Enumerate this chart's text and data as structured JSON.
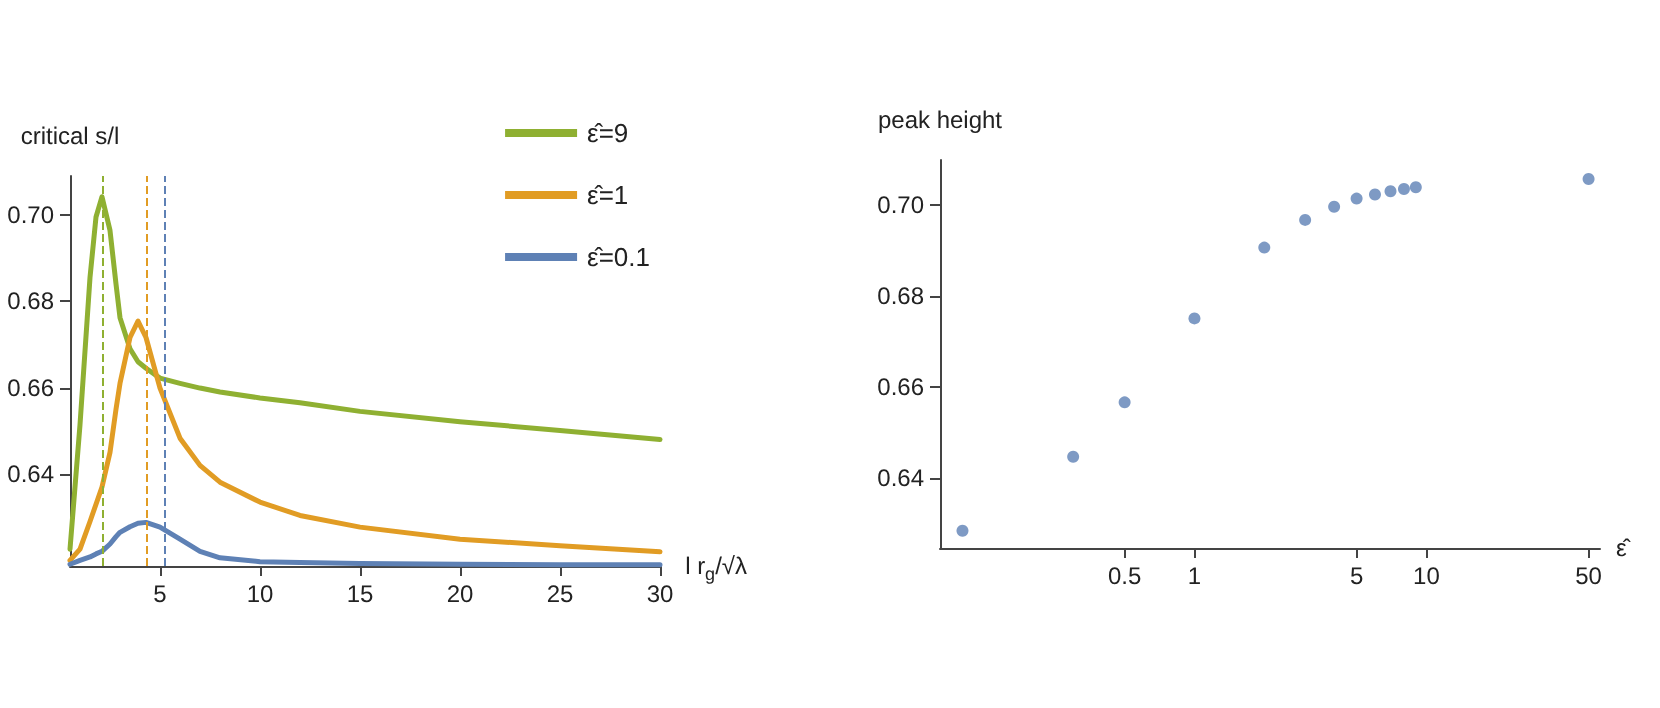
{
  "chart_data": [
    {
      "type": "line",
      "xlabel": "l r$_{g}$/√λ",
      "ylabel": "critical s/l",
      "x": [
        0.5,
        1,
        1.5,
        1.8,
        2.1,
        2.5,
        2.8,
        3,
        3.5,
        3.9,
        4.3,
        5,
        6,
        7,
        8,
        10,
        12,
        15,
        20,
        25,
        30
      ],
      "series": [
        {
          "name": "ε̂=9",
          "color": "#8fb032",
          "values": [
            0.6226,
            0.6514,
            0.6855,
            0.6995,
            0.7042,
            0.6964,
            0.684,
            0.6762,
            0.669,
            0.666,
            0.6645,
            0.6622,
            0.661,
            0.6599,
            0.659,
            0.6576,
            0.6565,
            0.6545,
            0.6521,
            0.6501,
            0.648
          ]
        },
        {
          "name": "ε̂=1",
          "color": "#e19c24",
          "values": [
            0.62,
            0.6226,
            0.629,
            0.633,
            0.637,
            0.645,
            0.655,
            0.661,
            0.6716,
            0.6754,
            0.6716,
            0.6599,
            0.6483,
            0.642,
            0.6381,
            0.6335,
            0.6304,
            0.6277,
            0.6249,
            0.6234,
            0.622
          ]
        },
        {
          "name": "ε̂=0.1",
          "color": "#5e81b5",
          "values": [
            0.6191,
            0.62,
            0.6208,
            0.6215,
            0.6221,
            0.6238,
            0.6255,
            0.6265,
            0.6278,
            0.6286,
            0.6288,
            0.6277,
            0.6249,
            0.6221,
            0.6206,
            0.6197,
            0.6195,
            0.6193,
            0.6191,
            0.619,
            0.619
          ]
        }
      ],
      "xlim": [
        0.5,
        30
      ],
      "xticks": [
        5,
        10,
        15,
        20,
        25,
        30
      ],
      "ylim": [
        0.6187,
        0.709
      ],
      "yticks": [
        {
          "value": 0.64,
          "label": "0.64"
        },
        {
          "value": 0.66,
          "label": "0.66"
        },
        {
          "value": 0.68,
          "label": "0.68"
        },
        {
          "value": 0.7,
          "label": "0.70"
        }
      ],
      "ref_lines": [
        {
          "axis": "x",
          "value": 2.13,
          "color": "#8fb032",
          "line_style": "dashed"
        },
        {
          "axis": "x",
          "value": 4.29,
          "color": "#e19c24",
          "line_style": "dashed"
        },
        {
          "axis": "x",
          "value": 5.25,
          "color": "#5e81b5",
          "line_style": "dashed"
        }
      ],
      "legend": "top right",
      "marker": "none",
      "line_style": "solid"
    },
    {
      "type": "scatter",
      "xlabel": "ε̂",
      "ylabel": "peak height",
      "x": [
        0.1,
        0.3,
        0.5,
        1,
        2,
        3,
        4,
        5,
        6,
        7,
        8,
        9,
        50
      ],
      "values": [
        0.6283,
        0.6446,
        0.6566,
        0.6751,
        0.6907,
        0.6968,
        0.6997,
        0.7015,
        0.7024,
        0.7031,
        0.7036,
        0.704,
        0.7058
      ],
      "color": "#5e81b5",
      "log": "x",
      "xlim": [
        0.08,
        56
      ],
      "xticks": [
        0.5,
        1,
        5,
        10,
        50
      ],
      "ylim": [
        0.6245,
        0.71
      ],
      "yticks": [
        {
          "value": 0.64,
          "label": "0.64"
        },
        {
          "value": 0.66,
          "label": "0.66"
        },
        {
          "value": 0.68,
          "label": "0.68"
        },
        {
          "value": 0.7,
          "label": "0.70"
        }
      ],
      "marker": "circle"
    }
  ]
}
